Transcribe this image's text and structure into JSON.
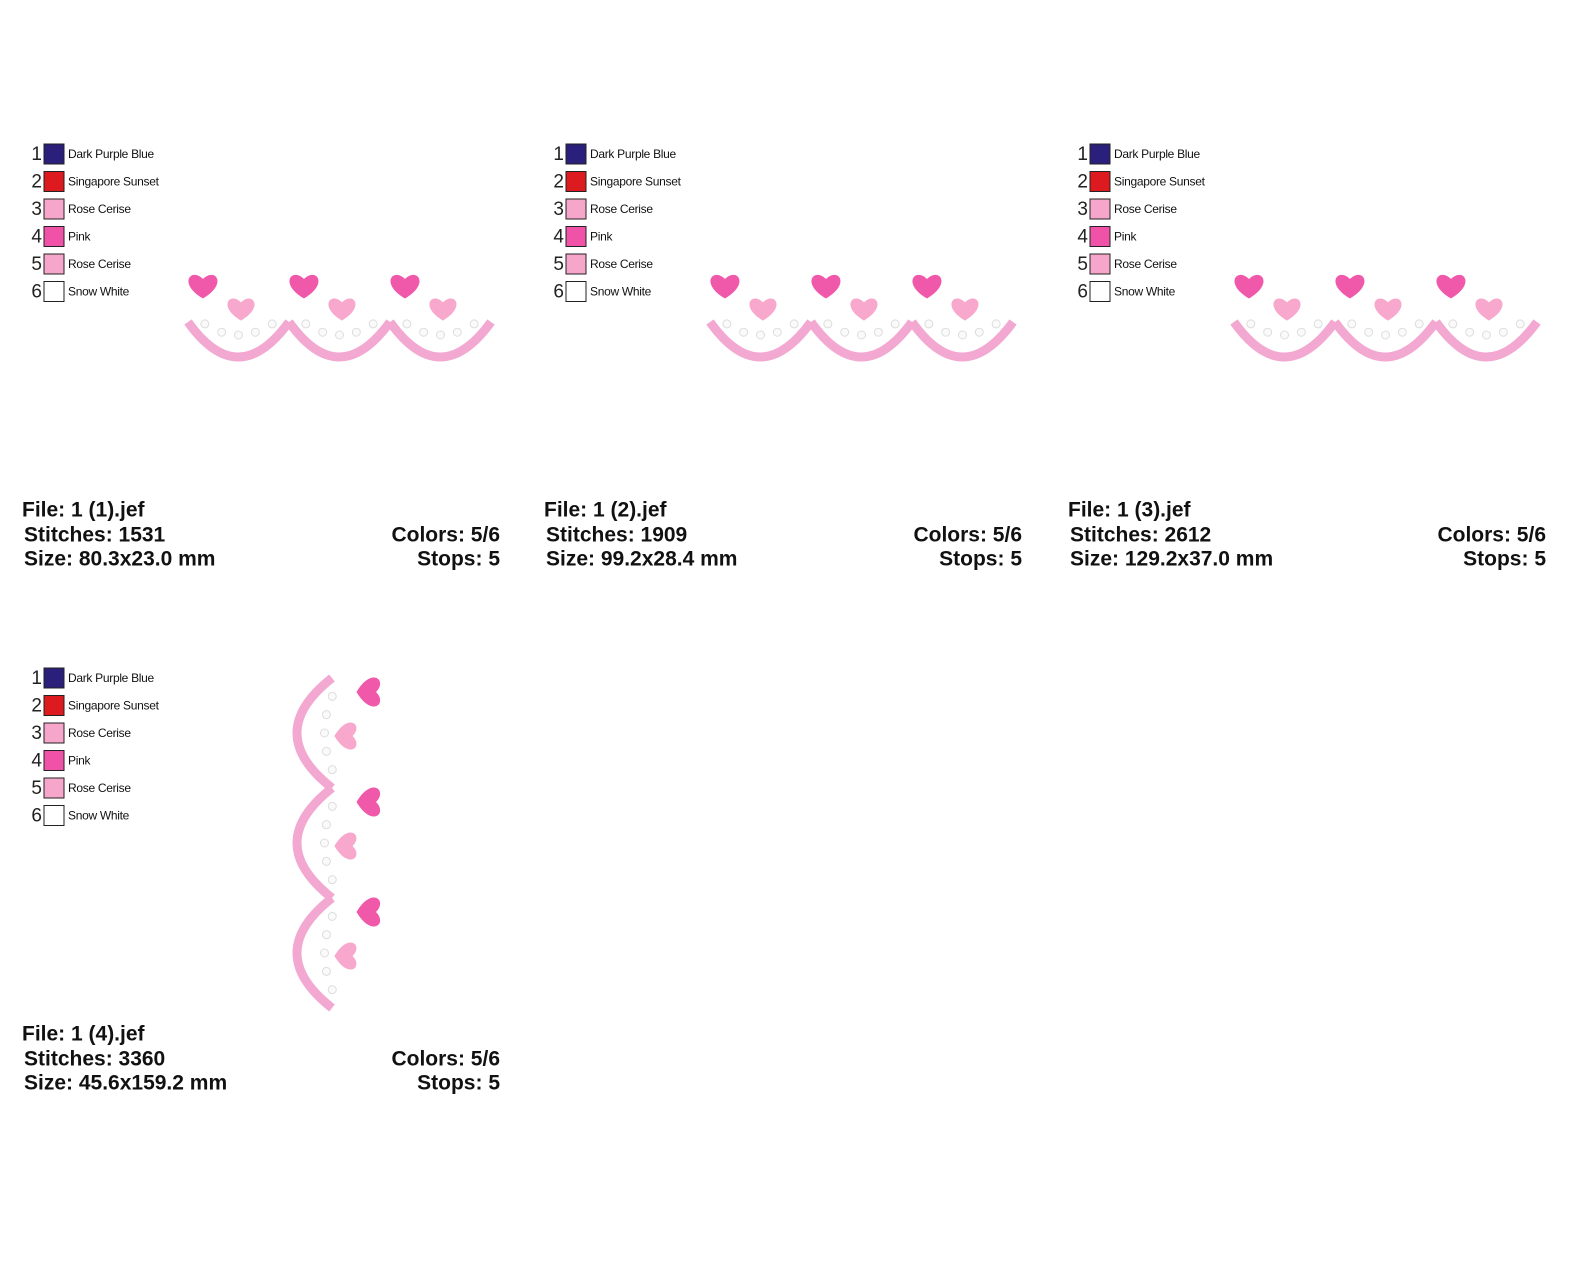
{
  "panels": [
    {
      "palette": [
        {
          "number": 1,
          "name": "Dark Purple Blue",
          "color": "#2a1f7a"
        },
        {
          "number": 2,
          "name": "Singapore Sunset",
          "color": "#dc1a1f"
        },
        {
          "number": 3,
          "name": "Rose Cerise",
          "color": "#f7a6cb"
        },
        {
          "number": 4,
          "name": "Pink",
          "color": "#f052a8"
        },
        {
          "number": 5,
          "name": "Rose Cerise",
          "color": "#f7a6cb"
        },
        {
          "number": 6,
          "name": "Snow White",
          "color": "#ffffff"
        }
      ],
      "file": "File: 1 (1).jef",
      "stitches": "Stitches: 1531",
      "size": "Size: 80.3x23.0 mm",
      "colors": "Colors: 5/6",
      "stops": "Stops: 5",
      "orientation": "horizontal"
    },
    {
      "palette": [
        {
          "number": 1,
          "name": "Dark Purple Blue",
          "color": "#2a1f7a"
        },
        {
          "number": 2,
          "name": "Singapore Sunset",
          "color": "#dc1a1f"
        },
        {
          "number": 3,
          "name": "Rose Cerise",
          "color": "#f7a6cb"
        },
        {
          "number": 4,
          "name": "Pink",
          "color": "#f052a8"
        },
        {
          "number": 5,
          "name": "Rose Cerise",
          "color": "#f7a6cb"
        },
        {
          "number": 6,
          "name": "Snow White",
          "color": "#ffffff"
        }
      ],
      "file": "File: 1 (2).jef",
      "stitches": "Stitches: 1909",
      "size": "Size: 99.2x28.4 mm",
      "colors": "Colors: 5/6",
      "stops": "Stops: 5",
      "orientation": "horizontal"
    },
    {
      "palette": [
        {
          "number": 1,
          "name": "Dark Purple Blue",
          "color": "#2a1f7a"
        },
        {
          "number": 2,
          "name": "Singapore Sunset",
          "color": "#dc1a1f"
        },
        {
          "number": 3,
          "name": "Rose Cerise",
          "color": "#f7a6cb"
        },
        {
          "number": 4,
          "name": "Pink",
          "color": "#f052a8"
        },
        {
          "number": 5,
          "name": "Rose Cerise",
          "color": "#f7a6cb"
        },
        {
          "number": 6,
          "name": "Snow White",
          "color": "#ffffff"
        }
      ],
      "file": "File: 1 (3).jef",
      "stitches": "Stitches: 2612",
      "size": "Size: 129.2x37.0 mm",
      "colors": "Colors: 5/6",
      "stops": "Stops: 5",
      "orientation": "horizontal"
    },
    {
      "palette": [
        {
          "number": 1,
          "name": "Dark Purple Blue",
          "color": "#2a1f7a"
        },
        {
          "number": 2,
          "name": "Singapore Sunset",
          "color": "#dc1a1f"
        },
        {
          "number": 3,
          "name": "Rose Cerise",
          "color": "#f7a6cb"
        },
        {
          "number": 4,
          "name": "Pink",
          "color": "#f052a8"
        },
        {
          "number": 5,
          "name": "Rose Cerise",
          "color": "#f7a6cb"
        },
        {
          "number": 6,
          "name": "Snow White",
          "color": "#ffffff"
        }
      ],
      "file": "File: 1 (4).jef",
      "stitches": "Stitches: 3360",
      "size": "Size: 45.6x159.2 mm",
      "colors": "Colors: 5/6",
      "stops": "Stops: 5",
      "orientation": "vertical"
    }
  ]
}
